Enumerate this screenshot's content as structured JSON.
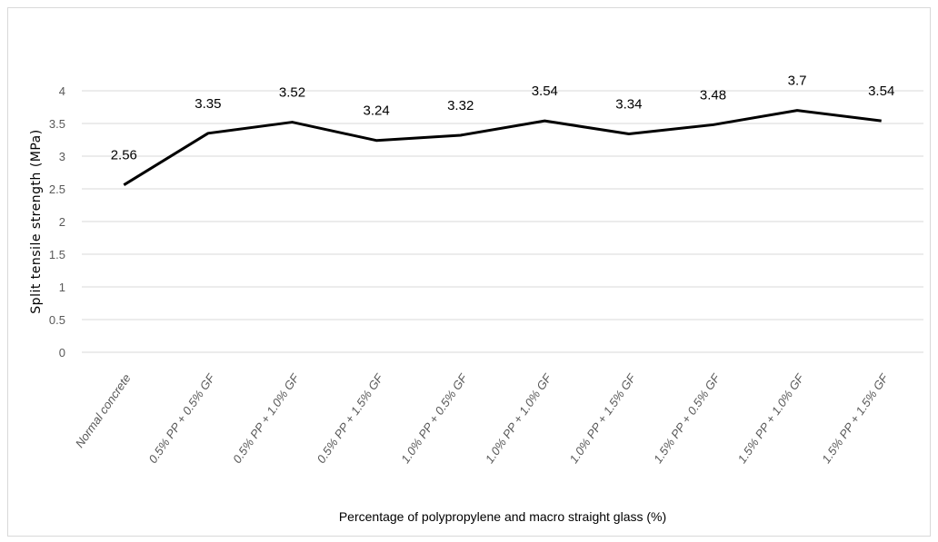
{
  "chart_data": {
    "type": "line",
    "title": "",
    "xlabel": "Percentage of polypropylene and macro straight glass (%)",
    "ylabel": "Split tensile strength (MPa)",
    "ylim": [
      0,
      4
    ],
    "yticks": [
      "0",
      "0.5",
      "1",
      "1.5",
      "2",
      "2.5",
      "3",
      "3.5",
      "4"
    ],
    "categories": [
      "Normal concrete",
      "0.5% PP + 0.5% GF",
      "0.5% PP + 1.0% GF",
      "0.5% PP + 1.5% GF",
      "1.0% PP + 0.5% GF",
      "1.0% PP + 1.0% GF",
      "1.0% PP + 1.5% GF",
      "1.5% PP + 0.5% GF",
      "1.5% PP + 1.0% GF",
      "1.5% PP + 1.5% GF"
    ],
    "series": [
      {
        "values": [
          2.56,
          3.35,
          3.52,
          3.24,
          3.32,
          3.54,
          3.34,
          3.48,
          3.7,
          3.54
        ]
      }
    ],
    "data_labels": [
      "2.56",
      "3.35",
      "3.52",
      "3.24",
      "3.32",
      "3.54",
      "3.34",
      "3.48",
      "3.7",
      "3.54"
    ],
    "grid": true,
    "legend": "none",
    "colors": {
      "line": "#000000",
      "grid": "#d9d9d9"
    }
  }
}
